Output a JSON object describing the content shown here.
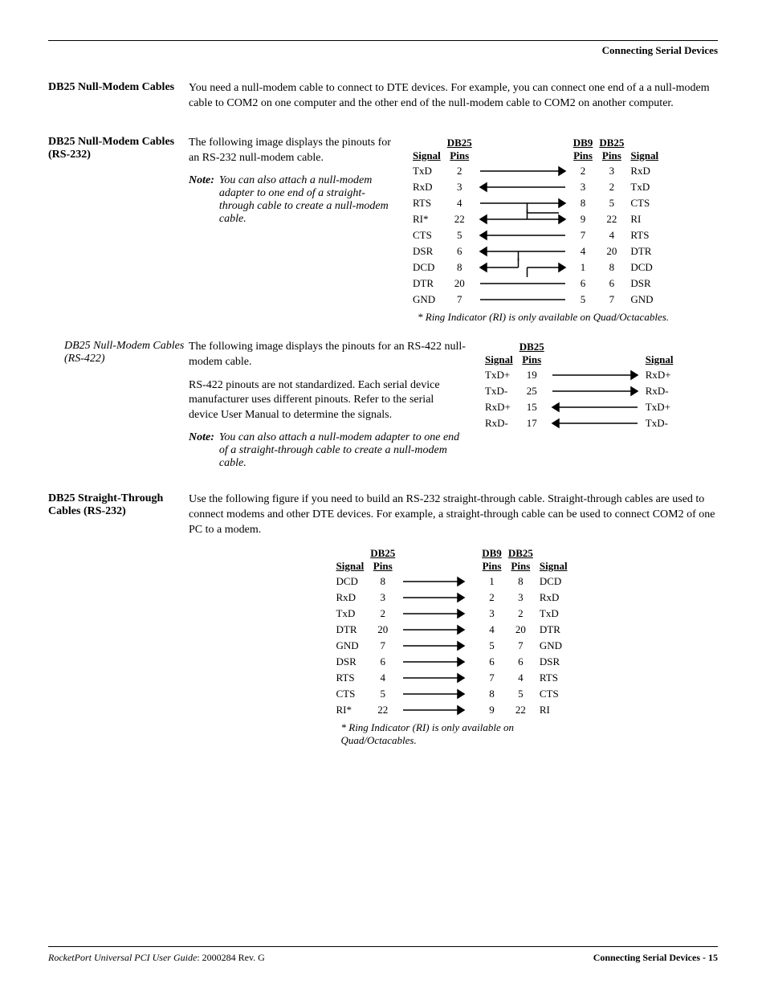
{
  "header": {
    "breadcrumb": "Connecting Serial Devices"
  },
  "s1": {
    "title": "DB25 Null-Modem Cables",
    "para": "You need a null-modem cable to connect to DTE devices. For example, you can connect one end of a a null-modem cable to COM2 on one computer and the other end of the null-modem cable to COM2 on another computer."
  },
  "s2": {
    "title": "DB25 Null-Modem Cables (RS-232)",
    "para": "The following image displays the pinouts for an RS-232 null-modem cable.",
    "note_label": "Note:",
    "note_text": "You can also attach a null-modem adapter to one end of a straight-through cable to create a null-modem cable.",
    "footnote": "* Ring Indicator (RI) is only available on Quad/Octacables.",
    "headers": {
      "signal": "Signal",
      "db25pins": "DB25\nPins",
      "db9pins": "DB9\nPins"
    },
    "rows": [
      {
        "sl": "TxD",
        "pl": "2",
        "arrow": "r",
        "dr": "2",
        "dl": "3",
        "sr": "RxD"
      },
      {
        "sl": "RxD",
        "pl": "3",
        "arrow": "l",
        "dr": "3",
        "dl": "2",
        "sr": "TxD"
      },
      {
        "sl": "RTS",
        "pl": "4",
        "arrow": "rbranch",
        "dr": "8",
        "dl": "5",
        "sr": "CTS"
      },
      {
        "sl": "RI*",
        "pl": "22",
        "arrow": "lup",
        "dr": "9",
        "dl": "22",
        "sr": "RI"
      },
      {
        "sl": "CTS",
        "pl": "5",
        "arrow": "l",
        "dr": "7",
        "dl": "4",
        "sr": "RTS"
      },
      {
        "sl": "DSR",
        "pl": "6",
        "arrow": "lbranch",
        "dr": "4",
        "dl": "20",
        "sr": "DTR"
      },
      {
        "sl": "DCD",
        "pl": "8",
        "arrow": "ldown",
        "dr": "1",
        "dl": "8",
        "sr": "DCD"
      },
      {
        "sl": "DTR",
        "pl": "20",
        "arrow": "line",
        "dr": "6",
        "dl": "6",
        "sr": "DSR"
      },
      {
        "sl": "GND",
        "pl": "7",
        "arrow": "line",
        "dr": "5",
        "dl": "7",
        "sr": "GND"
      }
    ]
  },
  "s3": {
    "title": "DB25 Null-Modem Cables (RS-422)",
    "para1": "The following image displays the pinouts for an RS-422 null-modem cable.",
    "para2": "RS-422 pinouts are not standardized. Each serial device manufacturer uses different pinouts. Refer to the serial device User Manual to determine the signals.",
    "note_label": "Note:",
    "note_text": "You can also attach a null-modem adapter to one end of a straight-through cable to create a null-modem cable.",
    "headers": {
      "signal": "Signal",
      "db25pins": "DB25\nPins"
    },
    "rows": [
      {
        "sl": "TxD+",
        "pl": "19",
        "arrow": "r",
        "sr": "RxD+"
      },
      {
        "sl": "TxD-",
        "pl": "25",
        "arrow": "r",
        "sr": "RxD-"
      },
      {
        "sl": "RxD+",
        "pl": "15",
        "arrow": "l",
        "sr": "TxD+"
      },
      {
        "sl": "RxD-",
        "pl": "17",
        "arrow": "l",
        "sr": "TxD-"
      }
    ]
  },
  "s4": {
    "title": "DB25 Straight-Through Cables (RS-232)",
    "para": "Use the following figure if you need to build an RS-232 straight-through cable. Straight-through cables are used to connect modems and other DTE devices. For example, a straight-through cable can be used to connect COM2 of one PC to a modem.",
    "footnote": "*  Ring Indicator (RI) is only available on Quad/Octacables.",
    "headers": {
      "signal": "Signal",
      "db25pins": "DB25\nPins",
      "db9pins": "DB9\nPins"
    },
    "rows": [
      {
        "sl": "DCD",
        "pl": "8",
        "dr": "1",
        "dl": "8",
        "sr": "DCD"
      },
      {
        "sl": "RxD",
        "pl": "3",
        "dr": "2",
        "dl": "3",
        "sr": "RxD"
      },
      {
        "sl": "TxD",
        "pl": "2",
        "dr": "3",
        "dl": "2",
        "sr": "TxD"
      },
      {
        "sl": "DTR",
        "pl": "20",
        "dr": "4",
        "dl": "20",
        "sr": "DTR"
      },
      {
        "sl": "GND",
        "pl": "7",
        "dr": "5",
        "dl": "7",
        "sr": "GND"
      },
      {
        "sl": "DSR",
        "pl": "6",
        "dr": "6",
        "dl": "6",
        "sr": "DSR"
      },
      {
        "sl": "RTS",
        "pl": "4",
        "dr": "7",
        "dl": "4",
        "sr": "RTS"
      },
      {
        "sl": "CTS",
        "pl": "5",
        "dr": "8",
        "dl": "5",
        "sr": "CTS"
      },
      {
        "sl": "RI*",
        "pl": "22",
        "dr": "9",
        "dl": "22",
        "sr": "RI"
      }
    ]
  },
  "footer": {
    "left_italic": "RocketPort Universal PCI User Guide",
    "left_rest": ": 2000284 Rev. G",
    "right": "Connecting Serial Devices - 15"
  },
  "svg": {
    "stroke": "#000000",
    "stroke_width": 1.5
  }
}
